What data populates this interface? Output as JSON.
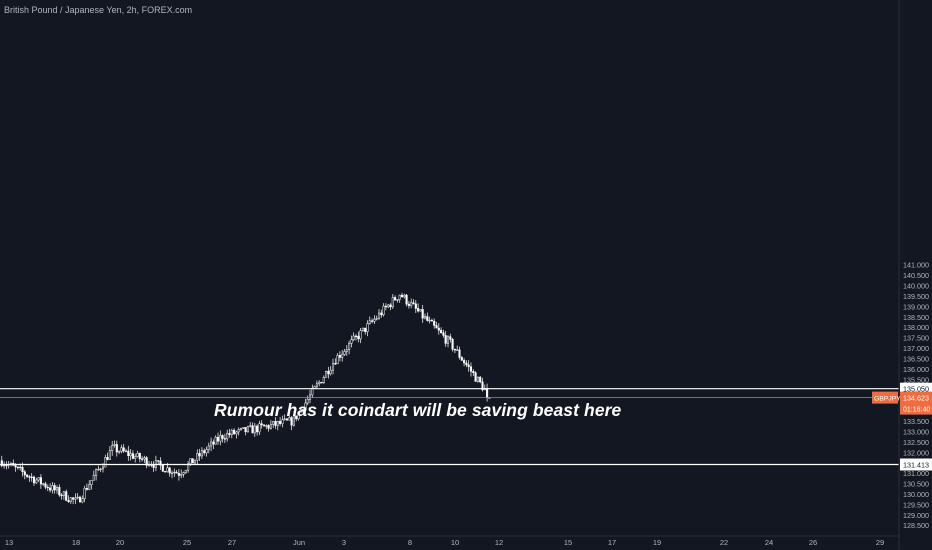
{
  "title": "British Pound / Japanese Yen, 2h, FOREX.com",
  "annotation": "Rumour has it coindart will be saving beast here",
  "colors": {
    "background": "#131722",
    "candle": "#ffffff",
    "axis_text": "#b2b5be",
    "price_line": "#ef6c3e",
    "symbol_badge": "#ef6c3e",
    "level_line": "#ffffff"
  },
  "chart_data": {
    "type": "candlestick",
    "symbol": "GBPJPY",
    "timeframe": "2h",
    "ylim": [
      128.3,
      141.0
    ],
    "y_ticks": [
      "128.500",
      "129.000",
      "129.500",
      "130.000",
      "130.500",
      "131.000",
      "131.500",
      "132.000",
      "132.500",
      "133.000",
      "133.500",
      "134.000",
      "134.500",
      "135.000",
      "135.500",
      "136.000",
      "136.500",
      "137.000",
      "137.500",
      "138.000",
      "138.500",
      "139.000",
      "139.500",
      "140.000",
      "140.500",
      "141.000"
    ],
    "x_ticks": [
      "13",
      "18",
      "20",
      "25",
      "27",
      "Jun",
      "3",
      "8",
      "10",
      "12",
      "15",
      "17",
      "19",
      "22",
      "24",
      "26",
      "29"
    ],
    "horizontal_levels": [
      {
        "price": 135.05,
        "label": "135.050"
      },
      {
        "price": 131.413,
        "label": "131.413"
      }
    ],
    "current_price": {
      "price": 134.623,
      "label": "134.623",
      "countdown": "01:16:40",
      "symbol_label": "GBPJPY"
    },
    "price_path": [
      {
        "x": "13",
        "price": 131.6
      },
      {
        "x": "18",
        "price": 129.6
      },
      {
        "x": "20",
        "price": 132.2
      },
      {
        "x": "25",
        "price": 131.0
      },
      {
        "x": "27",
        "price": 132.8
      },
      {
        "x": "Jun",
        "price": 133.5
      },
      {
        "x": "3",
        "price": 136.5
      },
      {
        "x": "8",
        "price": 139.6
      },
      {
        "x": "10",
        "price": 137.2
      },
      {
        "x": "12",
        "price": 134.62
      }
    ]
  }
}
